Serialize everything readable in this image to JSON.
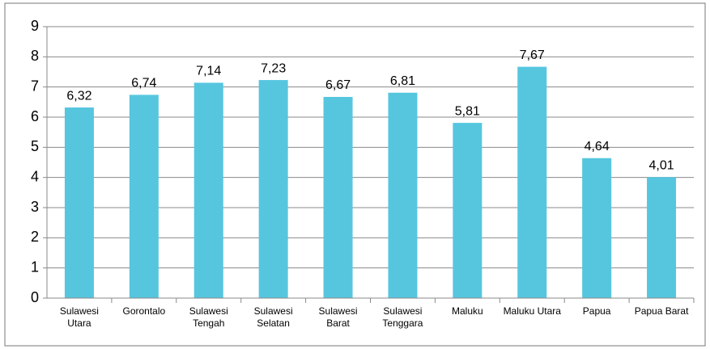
{
  "chart_data": {
    "type": "bar",
    "categories": [
      "Sulawesi Utara",
      "Gorontalo",
      "Sulawesi Tengah",
      "Sulawesi Selatan",
      "Sulawesi Barat",
      "Sulawesi Tenggara",
      "Maluku",
      "Maluku Utara",
      "Papua",
      "Papua Barat"
    ],
    "values": [
      6.32,
      6.74,
      7.14,
      7.23,
      6.67,
      6.81,
      5.81,
      7.67,
      4.64,
      4.01
    ],
    "value_labels": [
      "6,32",
      "6,74",
      "7,14",
      "7,23",
      "6,67",
      "6,81",
      "5,81",
      "7,67",
      "4,64",
      "4,01"
    ],
    "color": "#56c6df",
    "ylim": [
      0,
      9
    ],
    "yticks": [
      0,
      1,
      2,
      3,
      4,
      5,
      6,
      7,
      8,
      9
    ],
    "grid": true
  }
}
